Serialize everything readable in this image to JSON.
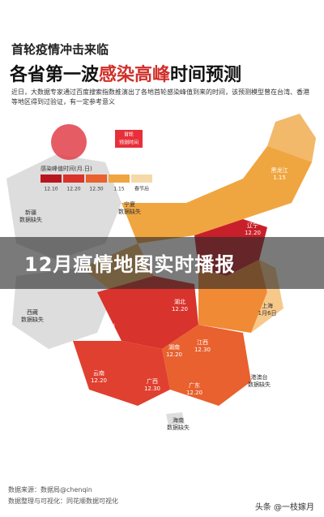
{
  "header": {
    "kicker": "首轮疫情冲击来临",
    "title_a": "各省第一波",
    "title_b": "感染高峰",
    "title_c": "时间预测",
    "subtitle": "近日，大数据专家通过百度搜索指数推演出了各地首轮感染峰值到来的时间，该预测模型曾在台湾、香港等地区得到过验证，有一定参考意义"
  },
  "badge": [
    "首轮",
    "预测时间"
  ],
  "legend": {
    "title": "感染峰值时间(月.日)",
    "items": [
      "12.10",
      "12.20",
      "12.30",
      "1.15",
      "春节后"
    ]
  },
  "labels": [
    {
      "name": "黑龙江",
      "value": "1.15"
    },
    {
      "name": "吉林",
      "value": "1.15"
    },
    {
      "name": "辽宁",
      "value": "12.20"
    },
    {
      "name": "宁夏",
      "value": "数据缺失"
    },
    {
      "name": "上海",
      "value": "1月6日"
    },
    {
      "name": "四川",
      "value": "12.20"
    },
    {
      "name": "湖北",
      "value": "12.20"
    },
    {
      "name": "湖南",
      "value": "12.20"
    },
    {
      "name": "江西",
      "value": "12.30"
    },
    {
      "name": "云南",
      "value": "12.20"
    },
    {
      "name": "广西",
      "value": "12.30"
    },
    {
      "name": "广东",
      "value": "12.20"
    },
    {
      "name": "海南",
      "value": "数据缺失"
    },
    {
      "name": "港澳台",
      "value": "数据缺失"
    },
    {
      "name": "西藏",
      "value": "数据缺失"
    },
    {
      "name": "新疆",
      "value": "数据缺失"
    }
  ],
  "banner": "12月瘟情地图实时播报",
  "footer": {
    "source": "数据来源：数据局@chenqin",
    "credit": "数据整理与可视化：同花顺数据可视化",
    "watermark": "头条 @一枝嫁月"
  }
}
